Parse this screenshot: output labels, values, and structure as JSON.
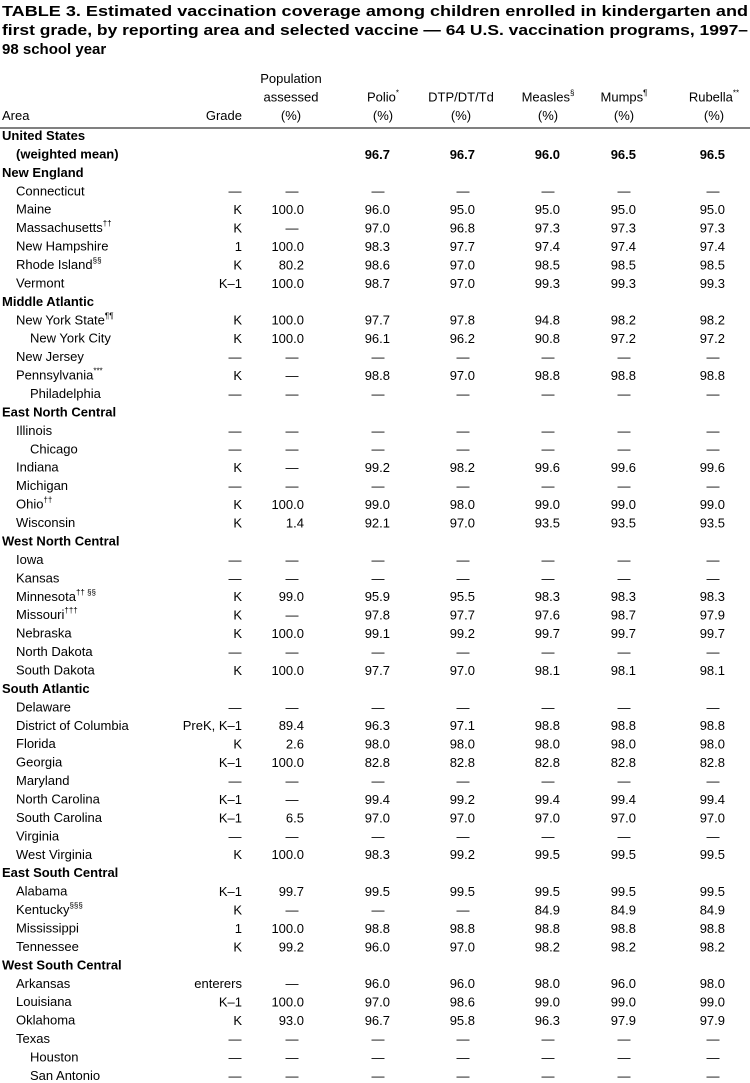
{
  "header": {
    "title": [
      "TABLE 3. Estimated vaccination coverage among children enrolled in kindergarten and",
      "first grade, by reporting area and selected vaccine — 64 U.S. vaccination programs, 1997–",
      "98 school year"
    ]
  },
  "table": {
    "columns": [
      {
        "lines": [
          "Area"
        ]
      },
      {
        "lines": [
          "Grade"
        ]
      },
      {
        "lines": [
          "Population",
          "assessed",
          "(%)"
        ]
      },
      {
        "lines": [
          "Polio",
          "(%)"
        ],
        "note": "*"
      },
      {
        "lines": [
          "DTP/DT/Td",
          "(%)"
        ]
      },
      {
        "lines": [
          "Measles",
          "(%)"
        ],
        "note": "§"
      },
      {
        "lines": [
          "Mumps",
          "(%)"
        ],
        "note": "¶"
      },
      {
        "lines": [
          "Rubella",
          "(%)"
        ],
        "note": "**"
      }
    ],
    "total": {
      "area": "United States",
      "area_line2": "(weighted mean)",
      "values": [
        "96.7",
        "96.7",
        "96.0",
        "96.5",
        "96.5"
      ]
    },
    "regions": [
      {
        "name": "New England",
        "rows": [
          {
            "area": "Connecticut",
            "cells": [
              "—",
              "—",
              "—",
              "—",
              "—",
              "—",
              "—"
            ]
          },
          {
            "area": "Maine",
            "cells": [
              "K",
              "100.0",
              "96.0",
              "95.0",
              "95.0",
              "95.0",
              "95.0"
            ]
          },
          {
            "area": "Massachusetts",
            "note": "††",
            "cells": [
              "K",
              "—",
              "97.0",
              "96.8",
              "97.3",
              "97.3",
              "97.3"
            ]
          },
          {
            "area": "New Hampshire",
            "cells": [
              "1",
              "100.0",
              "98.3",
              "97.7",
              "97.4",
              "97.4",
              "97.4"
            ]
          },
          {
            "area": "Rhode Island",
            "note": "§§",
            "cells": [
              "K",
              "80.2",
              "98.6",
              "97.0",
              "98.5",
              "98.5",
              "98.5"
            ]
          },
          {
            "area": "Vermont",
            "cells": [
              "K–1",
              "100.0",
              "98.7",
              "97.0",
              "99.3",
              "99.3",
              "99.3"
            ]
          }
        ]
      },
      {
        "name": "Middle Atlantic",
        "rows": [
          {
            "area": "New York State",
            "note": "¶¶",
            "cells": [
              "K",
              "100.0",
              "97.7",
              "97.8",
              "94.8",
              "98.2",
              "98.2"
            ],
            "subrows": [
              {
                "area": "New York City",
                "cells": [
                  "K",
                  "100.0",
                  "96.1",
                  "96.2",
                  "90.8",
                  "97.2",
                  "97.2"
                ]
              }
            ]
          },
          {
            "area": "New Jersey",
            "cells": [
              "—",
              "—",
              "—",
              "—",
              "—",
              "—",
              "—"
            ]
          },
          {
            "area": "Pennsylvania",
            "note": "***",
            "cells": [
              "K",
              "—",
              "98.8",
              "97.0",
              "98.8",
              "98.8",
              "98.8"
            ],
            "subrows": [
              {
                "area": "Philadelphia",
                "cells": [
                  "—",
                  "—",
                  "—",
                  "—",
                  "—",
                  "—",
                  "—"
                ]
              }
            ]
          }
        ]
      },
      {
        "name": "East North Central",
        "rows": [
          {
            "area": "Illinois",
            "cells": [
              "—",
              "—",
              "—",
              "—",
              "—",
              "—",
              "—"
            ],
            "subrows": [
              {
                "area": "Chicago",
                "cells": [
                  "—",
                  "—",
                  "—",
                  "—",
                  "—",
                  "—",
                  "—"
                ]
              }
            ]
          },
          {
            "area": "Indiana",
            "cells": [
              "K",
              "—",
              "99.2",
              "98.2",
              "99.6",
              "99.6",
              "99.6"
            ]
          },
          {
            "area": "Michigan",
            "cells": [
              "—",
              "—",
              "—",
              "—",
              "—",
              "—",
              "—"
            ]
          },
          {
            "area": "Ohio",
            "note": "††",
            "cells": [
              "K",
              "100.0",
              "99.0",
              "98.0",
              "99.0",
              "99.0",
              "99.0"
            ]
          },
          {
            "area": "Wisconsin",
            "cells": [
              "K",
              "1.4",
              "92.1",
              "97.0",
              "93.5",
              "93.5",
              "93.5"
            ]
          }
        ]
      },
      {
        "name": "West North Central",
        "rows": [
          {
            "area": "Iowa",
            "cells": [
              "—",
              "—",
              "—",
              "—",
              "—",
              "—",
              "—"
            ]
          },
          {
            "area": "Kansas",
            "cells": [
              "—",
              "—",
              "—",
              "—",
              "—",
              "—",
              "—"
            ]
          },
          {
            "area": "Minnesota",
            "note": "†† §§",
            "cells": [
              "K",
              "99.0",
              "95.9",
              "95.5",
              "98.3",
              "98.3",
              "98.3"
            ]
          },
          {
            "area": "Missouri",
            "note": "†††",
            "cells": [
              "K",
              "—",
              "97.8",
              "97.7",
              "97.6",
              "98.7",
              "97.9"
            ]
          },
          {
            "area": "Nebraska",
            "cells": [
              "K",
              "100.0",
              "99.1",
              "99.2",
              "99.7",
              "99.7",
              "99.7"
            ]
          },
          {
            "area": "North Dakota",
            "cells": [
              "—",
              "—",
              "—",
              "—",
              "—",
              "—",
              "—"
            ]
          },
          {
            "area": "South Dakota",
            "cells": [
              "K",
              "100.0",
              "97.7",
              "97.0",
              "98.1",
              "98.1",
              "98.1"
            ]
          }
        ]
      },
      {
        "name": "South Atlantic",
        "rows": [
          {
            "area": "Delaware",
            "cells": [
              "—",
              "—",
              "—",
              "—",
              "—",
              "—",
              "—"
            ]
          },
          {
            "area": "District of Columbia",
            "cells": [
              "PreK, K–1",
              "89.4",
              "96.3",
              "97.1",
              "98.8",
              "98.8",
              "98.8"
            ]
          },
          {
            "area": "Florida",
            "cells": [
              "K",
              "2.6",
              "98.0",
              "98.0",
              "98.0",
              "98.0",
              "98.0"
            ]
          },
          {
            "area": "Georgia",
            "cells": [
              "K–1",
              "100.0",
              "82.8",
              "82.8",
              "82.8",
              "82.8",
              "82.8"
            ]
          },
          {
            "area": "Maryland",
            "cells": [
              "—",
              "—",
              "—",
              "—",
              "—",
              "—",
              "—"
            ]
          },
          {
            "area": "North Carolina",
            "cells": [
              "K–1",
              "—",
              "99.4",
              "99.2",
              "99.4",
              "99.4",
              "99.4"
            ]
          },
          {
            "area": "South Carolina",
            "cells": [
              "K–1",
              "6.5",
              "97.0",
              "97.0",
              "97.0",
              "97.0",
              "97.0"
            ]
          },
          {
            "area": "Virginia",
            "cells": [
              "—",
              "—",
              "—",
              "—",
              "—",
              "—",
              "—"
            ]
          },
          {
            "area": "West Virginia",
            "cells": [
              "K",
              "100.0",
              "98.3",
              "99.2",
              "99.5",
              "99.5",
              "99.5"
            ]
          }
        ]
      },
      {
        "name": "East South Central",
        "rows": [
          {
            "area": "Alabama",
            "cells": [
              "K–1",
              "99.7",
              "99.5",
              "99.5",
              "99.5",
              "99.5",
              "99.5"
            ]
          },
          {
            "area": "Kentucky",
            "note": "§§§",
            "cells": [
              "K",
              "—",
              "—",
              "—",
              "84.9",
              "84.9",
              "84.9"
            ]
          },
          {
            "area": "Mississippi",
            "cells": [
              "1",
              "100.0",
              "98.8",
              "98.8",
              "98.8",
              "98.8",
              "98.8"
            ]
          },
          {
            "area": "Tennessee",
            "cells": [
              "K",
              "99.2",
              "96.0",
              "97.0",
              "98.2",
              "98.2",
              "98.2"
            ]
          }
        ]
      },
      {
        "name": "West South Central",
        "rows": [
          {
            "area": "Arkansas",
            "cells": [
              "enterers",
              "—",
              "96.0",
              "96.0",
              "98.0",
              "96.0",
              "98.0"
            ]
          },
          {
            "area": "Louisiana",
            "cells": [
              "K–1",
              "100.0",
              "97.0",
              "98.6",
              "99.0",
              "99.0",
              "99.0"
            ]
          },
          {
            "area": "Oklahoma",
            "cells": [
              "K",
              "93.0",
              "96.7",
              "95.8",
              "96.3",
              "97.9",
              "97.9"
            ]
          },
          {
            "area": "Texas",
            "cells": [
              "—",
              "—",
              "—",
              "—",
              "—",
              "—",
              "—"
            ],
            "subrows": [
              {
                "area": "Houston",
                "cells": [
                  "—",
                  "—",
                  "—",
                  "—",
                  "—",
                  "—",
                  "—"
                ]
              },
              {
                "area": "San Antonio",
                "cells": [
                  "—",
                  "—",
                  "—",
                  "—",
                  "—",
                  "—",
                  "—"
                ]
              }
            ]
          }
        ]
      }
    ]
  }
}
